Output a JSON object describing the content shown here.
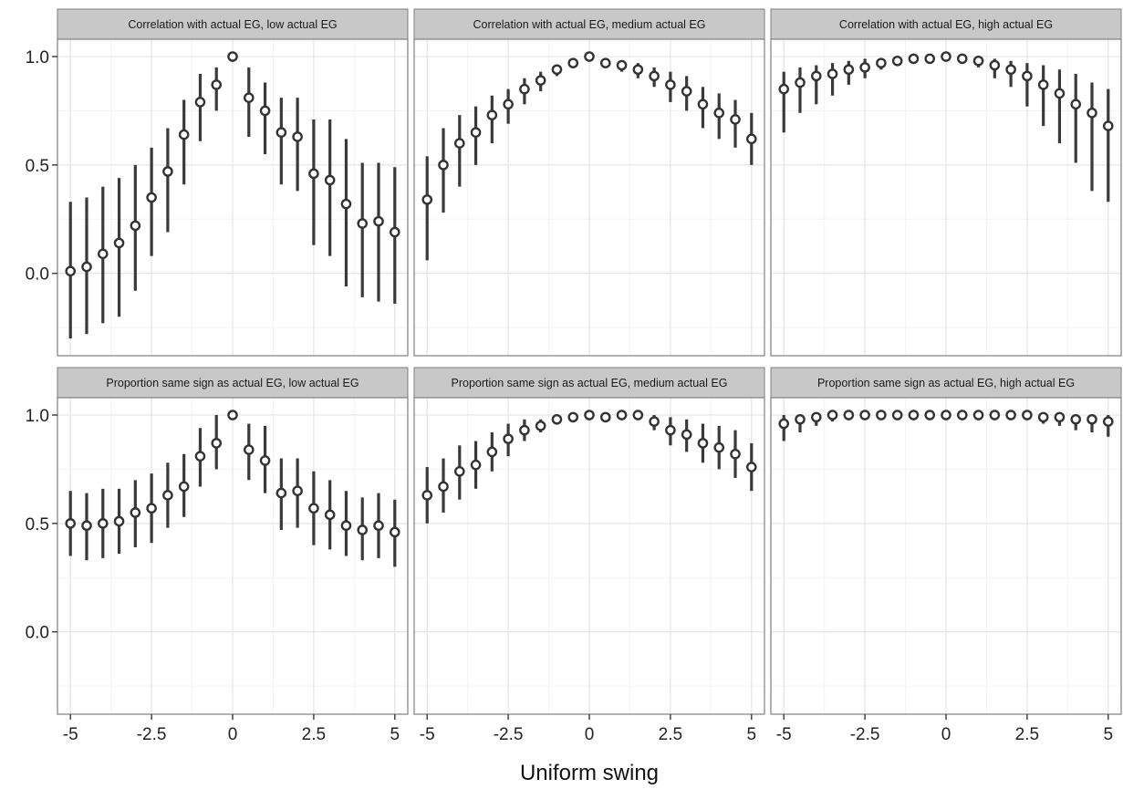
{
  "chart_data": {
    "type": "scatter",
    "subtype": "point-range-facets",
    "xlabel": "Uniform swing",
    "ylabel": "",
    "xlim": [
      -5.4,
      5.4
    ],
    "ylim": [
      -0.38,
      1.08
    ],
    "x_ticks": [
      -5,
      -2.5,
      0,
      2.5,
      5
    ],
    "x_tick_labels": [
      "-5",
      "-2.5",
      "0",
      "2.5",
      "5"
    ],
    "y_ticks": [
      0.0,
      0.5,
      1.0
    ],
    "y_tick_labels": [
      "0.0",
      "0.5",
      "1.0"
    ],
    "grid": true,
    "colors": {
      "panel_bg": "#ffffff",
      "grid_major": "#e6e6e6",
      "grid_minor": "#f3f3f3",
      "strip_bg": "#c8c8c8",
      "border": "#7f7f7f",
      "point": "#333333",
      "point_fill": "#ffffff",
      "range": "#3a3a3a"
    },
    "x": [
      -5,
      -4.5,
      -4,
      -3.5,
      -3,
      -2.5,
      -2,
      -1.5,
      -1,
      -0.5,
      0,
      0.5,
      1,
      1.5,
      2,
      2.5,
      3,
      3.5,
      4,
      4.5,
      5
    ],
    "panels": [
      {
        "title": "Correlation with actual EG, low actual EG",
        "y": [
          0.01,
          0.03,
          0.09,
          0.14,
          0.22,
          0.35,
          0.47,
          0.64,
          0.79,
          0.87,
          1.0,
          0.81,
          0.75,
          0.65,
          0.63,
          0.46,
          0.43,
          0.32,
          0.23,
          0.24,
          0.19
        ],
        "low": [
          -0.3,
          -0.28,
          -0.23,
          -0.2,
          -0.08,
          0.08,
          0.19,
          0.41,
          0.61,
          0.75,
          1.0,
          0.63,
          0.55,
          0.41,
          0.38,
          0.13,
          0.08,
          -0.06,
          -0.11,
          -0.13,
          -0.14
        ],
        "high": [
          0.33,
          0.35,
          0.4,
          0.44,
          0.5,
          0.58,
          0.67,
          0.8,
          0.92,
          0.95,
          1.0,
          0.95,
          0.88,
          0.81,
          0.81,
          0.71,
          0.71,
          0.62,
          0.51,
          0.51,
          0.49
        ]
      },
      {
        "title": "Correlation with actual EG, medium actual EG",
        "y": [
          0.34,
          0.5,
          0.6,
          0.65,
          0.73,
          0.78,
          0.85,
          0.89,
          0.94,
          0.97,
          1.0,
          0.97,
          0.96,
          0.94,
          0.91,
          0.87,
          0.84,
          0.78,
          0.74,
          0.71,
          0.62
        ],
        "low": [
          0.06,
          0.28,
          0.4,
          0.5,
          0.6,
          0.69,
          0.78,
          0.84,
          0.91,
          0.95,
          1.0,
          0.95,
          0.93,
          0.9,
          0.86,
          0.79,
          0.75,
          0.67,
          0.62,
          0.58,
          0.5
        ],
        "high": [
          0.54,
          0.67,
          0.73,
          0.77,
          0.82,
          0.85,
          0.9,
          0.93,
          0.96,
          0.98,
          1.0,
          0.99,
          0.98,
          0.97,
          0.95,
          0.93,
          0.91,
          0.86,
          0.83,
          0.8,
          0.74
        ]
      },
      {
        "title": "Correlation with actual EG, high actual EG",
        "y": [
          0.85,
          0.88,
          0.91,
          0.92,
          0.94,
          0.95,
          0.97,
          0.98,
          0.99,
          0.99,
          1.0,
          0.99,
          0.98,
          0.96,
          0.94,
          0.91,
          0.87,
          0.83,
          0.78,
          0.74,
          0.68
        ],
        "low": [
          0.65,
          0.74,
          0.78,
          0.82,
          0.87,
          0.9,
          0.94,
          0.96,
          0.98,
          0.99,
          1.0,
          0.98,
          0.95,
          0.9,
          0.86,
          0.77,
          0.68,
          0.6,
          0.51,
          0.38,
          0.33
        ],
        "high": [
          0.93,
          0.95,
          0.96,
          0.97,
          0.98,
          0.99,
          0.99,
          1.0,
          1.0,
          1.0,
          1.0,
          1.0,
          1.0,
          0.99,
          0.98,
          0.97,
          0.96,
          0.94,
          0.92,
          0.88,
          0.85
        ]
      },
      {
        "title": "Proportion same sign as actual EG, low actual EG",
        "y": [
          0.5,
          0.49,
          0.5,
          0.51,
          0.55,
          0.57,
          0.63,
          0.67,
          0.81,
          0.87,
          1.0,
          0.84,
          0.79,
          0.64,
          0.65,
          0.57,
          0.54,
          0.49,
          0.47,
          0.49,
          0.46
        ],
        "low": [
          0.35,
          0.33,
          0.34,
          0.36,
          0.39,
          0.41,
          0.48,
          0.53,
          0.67,
          0.75,
          1.0,
          0.7,
          0.64,
          0.47,
          0.48,
          0.4,
          0.38,
          0.35,
          0.33,
          0.34,
          0.3
        ],
        "high": [
          0.65,
          0.64,
          0.66,
          0.66,
          0.7,
          0.73,
          0.78,
          0.82,
          0.94,
          1.0,
          1.0,
          0.96,
          0.95,
          0.8,
          0.8,
          0.74,
          0.7,
          0.65,
          0.62,
          0.64,
          0.61
        ]
      },
      {
        "title": "Proportion same sign as actual EG, medium actual EG",
        "y": [
          0.63,
          0.67,
          0.74,
          0.77,
          0.83,
          0.89,
          0.93,
          0.95,
          0.98,
          0.99,
          1.0,
          0.99,
          1.0,
          1.0,
          0.97,
          0.93,
          0.91,
          0.87,
          0.85,
          0.82,
          0.76
        ],
        "low": [
          0.5,
          0.55,
          0.61,
          0.66,
          0.74,
          0.81,
          0.88,
          0.92,
          0.96,
          0.98,
          1.0,
          0.97,
          0.98,
          0.98,
          0.93,
          0.86,
          0.83,
          0.78,
          0.75,
          0.71,
          0.65
        ],
        "high": [
          0.76,
          0.8,
          0.86,
          0.88,
          0.92,
          0.96,
          0.98,
          0.98,
          1.0,
          1.0,
          1.0,
          1.0,
          1.0,
          1.0,
          1.0,
          0.99,
          0.98,
          0.96,
          0.95,
          0.93,
          0.87
        ]
      },
      {
        "title": "Proportion same sign as actual EG, high actual EG",
        "y": [
          0.96,
          0.98,
          0.99,
          1.0,
          1.0,
          1.0,
          1.0,
          1.0,
          1.0,
          1.0,
          1.0,
          1.0,
          1.0,
          1.0,
          1.0,
          1.0,
          0.99,
          0.99,
          0.98,
          0.98,
          0.97
        ],
        "low": [
          0.88,
          0.92,
          0.95,
          0.97,
          0.98,
          0.99,
          0.99,
          1.0,
          1.0,
          1.0,
          1.0,
          1.0,
          1.0,
          1.0,
          1.0,
          0.98,
          0.96,
          0.95,
          0.93,
          0.92,
          0.9
        ],
        "high": [
          1.0,
          1.0,
          1.0,
          1.0,
          1.0,
          1.0,
          1.0,
          1.0,
          1.0,
          1.0,
          1.0,
          1.0,
          1.0,
          1.0,
          1.0,
          1.0,
          1.0,
          1.0,
          1.0,
          1.0,
          1.0
        ]
      }
    ]
  }
}
